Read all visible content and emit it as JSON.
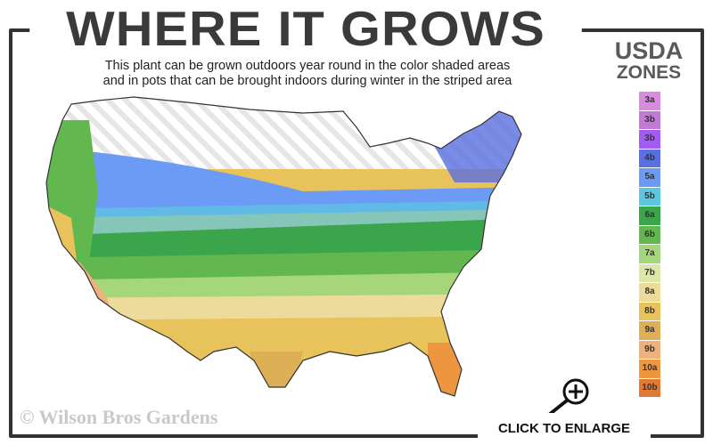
{
  "header": {
    "title": "WHERE IT GROWS",
    "subtitle_line1": "This plant can be grown outdoors year round in the color shaded areas",
    "subtitle_line2": "and in pots that can be brought indoors during winter in the striped area"
  },
  "legend": {
    "title_line1": "USDA",
    "title_line2": "ZONES",
    "zones": [
      {
        "label": "3a",
        "color": "#d98be0"
      },
      {
        "label": "3b",
        "color": "#c27ad6"
      },
      {
        "label": "3b",
        "color": "#a35cf0"
      },
      {
        "label": "4b",
        "color": "#5a6fe0"
      },
      {
        "label": "5a",
        "color": "#6b9bf5"
      },
      {
        "label": "5b",
        "color": "#5cc8e0"
      },
      {
        "label": "6a",
        "color": "#3aa54a"
      },
      {
        "label": "6b",
        "color": "#62b84e"
      },
      {
        "label": "7a",
        "color": "#a6d67a"
      },
      {
        "label": "7b",
        "color": "#dde8a8"
      },
      {
        "label": "8a",
        "color": "#ecdb9a"
      },
      {
        "label": "8b",
        "color": "#e8c25a"
      },
      {
        "label": "9a",
        "color": "#ddb055"
      },
      {
        "label": "9b",
        "color": "#f0b07a"
      },
      {
        "label": "10a",
        "color": "#ec9640"
      },
      {
        "label": "10b",
        "color": "#e07a35"
      }
    ]
  },
  "watermark": "© Wilson Bros Gardens",
  "enlarge": {
    "label": "CLICK TO ENLARGE",
    "icon": "magnifier-plus-icon"
  }
}
